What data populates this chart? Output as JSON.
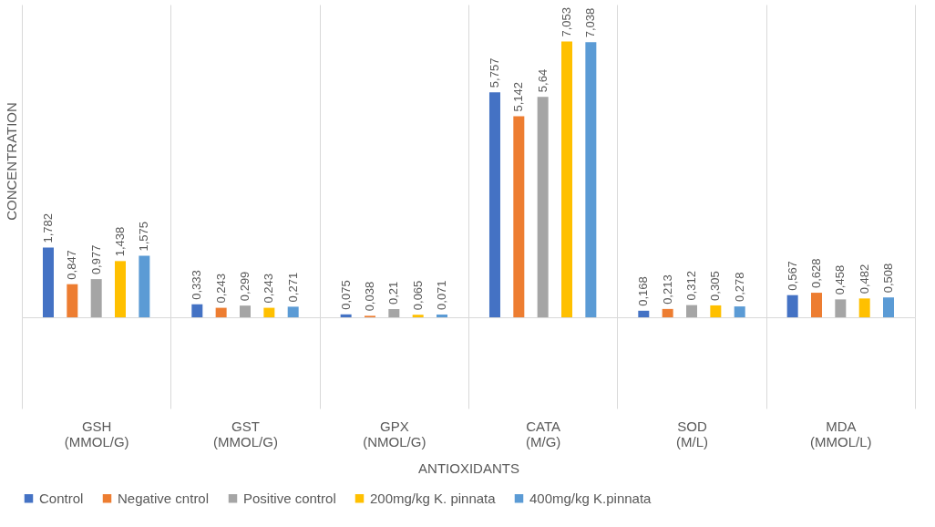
{
  "chart_data": {
    "type": "bar",
    "xlabel": "ANTIOXIDANTS",
    "ylabel": "CONCENTRATION",
    "categories": [
      "GSH (MMOL/G)",
      "GST (MMOL/G)",
      "GPX (NMOL/G)",
      "CATA (M/G)",
      "SOD (M/L)",
      "MDA (MMOL/L)"
    ],
    "series": [
      {
        "name": "Control",
        "color": "#4472c4",
        "values": [
          1.782,
          0.333,
          0.075,
          5.757,
          0.168,
          0.567
        ],
        "value_labels": [
          "1,782",
          "0,333",
          "0,075",
          "5,757",
          "0,168",
          "0,567"
        ]
      },
      {
        "name": "Negative cntrol",
        "color": "#ed7d31",
        "values": [
          0.847,
          0.243,
          0.038,
          5.142,
          0.213,
          0.628
        ],
        "value_labels": [
          "0,847",
          "0,243",
          "0,038",
          "5,142",
          "0,213",
          "0,628"
        ]
      },
      {
        "name": "Positive control",
        "color": "#a5a5a5",
        "values": [
          0.977,
          0.299,
          0.21,
          5.64,
          0.312,
          0.458
        ],
        "value_labels": [
          "0,977",
          "0,299",
          "0,21",
          "5,64",
          "0,312",
          "0,458"
        ]
      },
      {
        "name": "200mg/kg K. pinnata",
        "color": "#ffc000",
        "values": [
          1.438,
          0.243,
          0.065,
          7.053,
          0.305,
          0.482
        ],
        "value_labels": [
          "1,438",
          "0,243",
          "0,065",
          "7,053",
          "0,305",
          "0,482"
        ]
      },
      {
        "name": "400mg/kg K.pinnata",
        "color": "#5b9bd5",
        "values": [
          1.575,
          0.271,
          0.071,
          7.038,
          0.278,
          0.508
        ],
        "value_labels": [
          "1,575",
          "0,271",
          "0,071",
          "7,038",
          "0,278",
          "0,508"
        ]
      }
    ],
    "grid": "x",
    "legend": "bottom",
    "tick_labels": "x"
  }
}
